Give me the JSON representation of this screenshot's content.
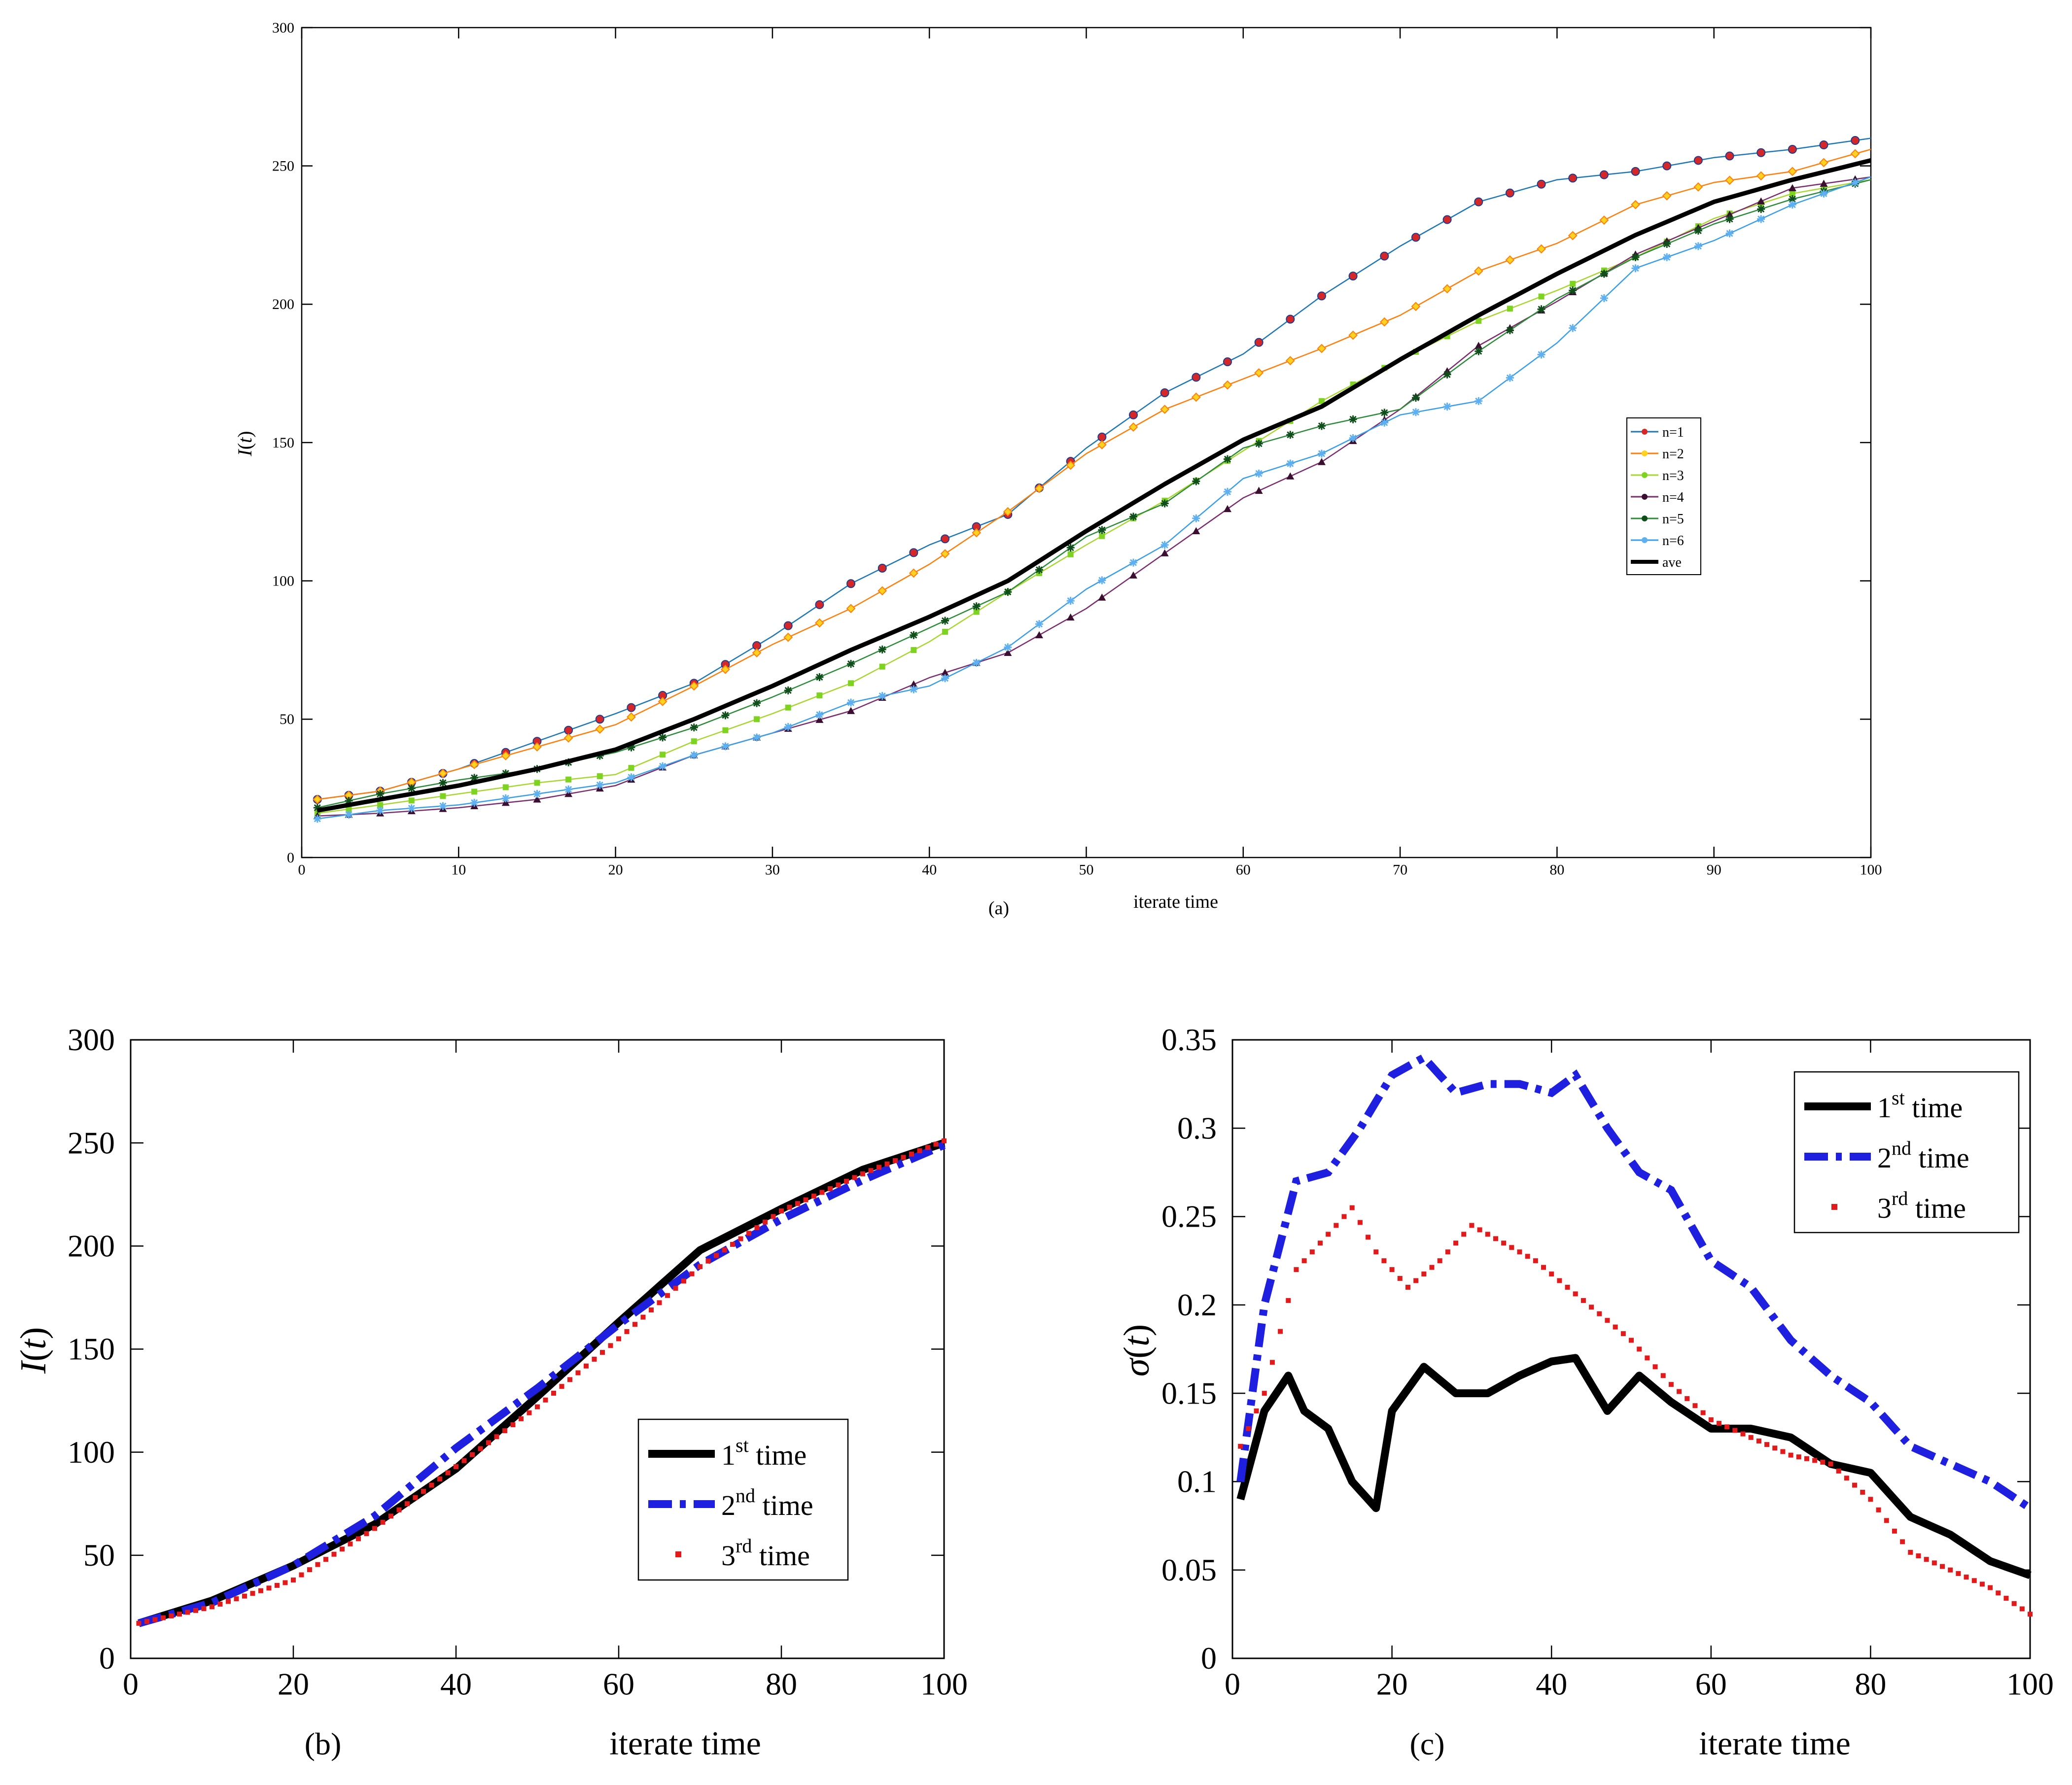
{
  "figure": {
    "panels": {
      "a": "(a)",
      "b": "(b)",
      "c": "(c)"
    }
  },
  "chart_data": [
    {
      "id": "a",
      "type": "line",
      "xlabel": "iterate time",
      "ylabel_main": "I",
      "ylabel_arg": "t",
      "xlim": [
        0,
        100
      ],
      "ylim": [
        0,
        300
      ],
      "xticks": [
        0,
        10,
        20,
        30,
        40,
        50,
        60,
        70,
        80,
        90,
        100
      ],
      "yticks": [
        0,
        50,
        100,
        150,
        200,
        250,
        300
      ],
      "legend_position": "right",
      "series": [
        {
          "name": "n=1",
          "color": "#1f77b4",
          "marker": "circle",
          "markerColor": "#d62728",
          "kx": [
            1,
            5,
            10,
            15,
            20,
            25,
            30,
            35,
            40,
            45,
            50,
            55,
            60,
            65,
            70,
            75,
            80,
            85,
            90,
            95,
            100
          ],
          "ky": [
            21,
            24,
            32,
            42,
            52,
            63,
            80,
            99,
            113,
            124,
            148,
            168,
            182,
            203,
            221,
            237,
            245,
            248,
            253,
            256,
            260
          ]
        },
        {
          "name": "n=2",
          "color": "#ff7f0e",
          "marker": "diamond",
          "markerColor": "#ffd21f",
          "kx": [
            1,
            5,
            10,
            15,
            20,
            25,
            30,
            35,
            40,
            45,
            50,
            55,
            60,
            65,
            70,
            75,
            80,
            85,
            90,
            95,
            100
          ],
          "ky": [
            21,
            24,
            32,
            40,
            48,
            62,
            77,
            90,
            106,
            125,
            146,
            162,
            173,
            184,
            196,
            212,
            222,
            236,
            244,
            248,
            256
          ]
        },
        {
          "name": "n=3",
          "color": "#a8d630",
          "marker": "square",
          "markerColor": "#7ed321",
          "kx": [
            1,
            5,
            10,
            15,
            20,
            25,
            30,
            35,
            40,
            45,
            50,
            55,
            60,
            65,
            70,
            75,
            80,
            85,
            90,
            95,
            100
          ],
          "ky": [
            16,
            19,
            23,
            27,
            30,
            42,
            52,
            63,
            78,
            96,
            113,
            129,
            147,
            165,
            180,
            194,
            205,
            217,
            231,
            240,
            245
          ]
        },
        {
          "name": "n=4",
          "color": "#7b2d6e",
          "marker": "triangle",
          "markerColor": "#3b0f2f",
          "kx": [
            1,
            5,
            10,
            15,
            20,
            25,
            30,
            35,
            40,
            45,
            50,
            55,
            60,
            65,
            70,
            75,
            80,
            85,
            90,
            95,
            100
          ],
          "ky": [
            15,
            16,
            18,
            21,
            26,
            37,
            45,
            53,
            65,
            74,
            90,
            110,
            130,
            143,
            162,
            185,
            201,
            218,
            230,
            242,
            246
          ]
        },
        {
          "name": "n=5",
          "color": "#2e8b3a",
          "marker": "star",
          "markerColor": "#0f4d1a",
          "kx": [
            1,
            5,
            10,
            15,
            20,
            25,
            30,
            35,
            40,
            45,
            50,
            55,
            60,
            65,
            70,
            75,
            80,
            85,
            90,
            95,
            100
          ],
          "ky": [
            18,
            23,
            28,
            32,
            38,
            47,
            58,
            70,
            83,
            96,
            116,
            128,
            148,
            156,
            162,
            183,
            202,
            217,
            229,
            238,
            245
          ]
        },
        {
          "name": "n=6",
          "color": "#3b9ee8",
          "marker": "asterisk",
          "markerColor": "#5fb0f0",
          "kx": [
            1,
            5,
            10,
            15,
            20,
            25,
            30,
            35,
            40,
            45,
            50,
            55,
            60,
            65,
            70,
            75,
            80,
            85,
            90,
            95,
            100
          ],
          "ky": [
            14,
            17,
            19,
            23,
            27,
            37,
            45,
            56,
            62,
            76,
            97,
            113,
            137,
            146,
            160,
            165,
            186,
            213,
            223,
            236,
            246
          ]
        },
        {
          "name": "ave",
          "color": "#000000",
          "marker": "none",
          "markerColor": "#000000",
          "kx": [
            1,
            5,
            10,
            15,
            20,
            25,
            30,
            35,
            40,
            45,
            50,
            55,
            60,
            65,
            70,
            75,
            80,
            85,
            90,
            95,
            100
          ],
          "ky": [
            17,
            21,
            26,
            32,
            39,
            50,
            62,
            75,
            87,
            100,
            118,
            135,
            151,
            163,
            180,
            196,
            211,
            225,
            237,
            245,
            252
          ]
        }
      ]
    },
    {
      "id": "b",
      "type": "line",
      "xlabel": "iterate time",
      "ylabel_main": "I",
      "ylabel_arg": "t",
      "xlim": [
        0,
        100
      ],
      "ylim": [
        0,
        300
      ],
      "xticks": [
        0,
        20,
        40,
        60,
        80,
        100
      ],
      "yticks": [
        0,
        50,
        100,
        150,
        200,
        250,
        300
      ],
      "legend_position": "lower-right",
      "series": [
        {
          "name": "1",
          "sup": "st",
          "suffix": " time",
          "color": "#000000",
          "style": "solid",
          "kx": [
            1,
            10,
            20,
            30,
            40,
            50,
            60,
            70,
            80,
            90,
            100
          ],
          "ky": [
            17,
            28,
            45,
            65,
            92,
            127,
            163,
            198,
            218,
            237,
            250
          ]
        },
        {
          "name": "2",
          "sup": "nd",
          "suffix": " time",
          "color": "#1f1fe0",
          "style": "dashdot",
          "kx": [
            1,
            10,
            20,
            30,
            40,
            50,
            60,
            70,
            80,
            90,
            100
          ],
          "ky": [
            17,
            27,
            45,
            69,
            102,
            131,
            162,
            191,
            213,
            232,
            249
          ]
        },
        {
          "name": "3",
          "sup": "rd",
          "suffix": " time",
          "color": "#e31a1c",
          "style": "dotted",
          "kx": [
            1,
            10,
            20,
            30,
            40,
            50,
            60,
            70,
            80,
            90,
            100
          ],
          "ky": [
            17,
            25,
            38,
            63,
            93,
            122,
            155,
            190,
            217,
            235,
            251
          ]
        }
      ]
    },
    {
      "id": "c",
      "type": "line",
      "xlabel": "iterate time",
      "ylabel_main": "σ",
      "ylabel_arg": "t",
      "xlim": [
        0,
        100
      ],
      "ylim": [
        0,
        0.35
      ],
      "xticks": [
        0,
        20,
        40,
        60,
        80,
        100
      ],
      "yticks": [
        0,
        0.05,
        0.1,
        0.15,
        0.2,
        0.25,
        0.3,
        0.35
      ],
      "legend_position": "top-right",
      "series": [
        {
          "name": "1",
          "sup": "st",
          "suffix": " time",
          "color": "#000000",
          "style": "solid",
          "kx": [
            1,
            4,
            7,
            9,
            12,
            15,
            18,
            20,
            24,
            28,
            32,
            36,
            40,
            43,
            47,
            51,
            55,
            60,
            65,
            70,
            75,
            80,
            85,
            90,
            95,
            100
          ],
          "ky": [
            0.09,
            0.14,
            0.16,
            0.14,
            0.13,
            0.1,
            0.085,
            0.14,
            0.165,
            0.15,
            0.15,
            0.16,
            0.168,
            0.17,
            0.14,
            0.16,
            0.145,
            0.13,
            0.13,
            0.125,
            0.11,
            0.105,
            0.08,
            0.07,
            0.055,
            0.047
          ]
        },
        {
          "name": "2",
          "sup": "nd",
          "suffix": " time",
          "color": "#1f1fe0",
          "style": "dashdot",
          "kx": [
            1,
            4,
            8,
            12,
            16,
            20,
            24,
            28,
            32,
            36,
            40,
            43,
            47,
            51,
            55,
            60,
            65,
            70,
            75,
            80,
            85,
            90,
            95,
            100
          ],
          "ky": [
            0.1,
            0.2,
            0.27,
            0.275,
            0.3,
            0.33,
            0.34,
            0.32,
            0.325,
            0.325,
            0.32,
            0.33,
            0.3,
            0.275,
            0.265,
            0.225,
            0.21,
            0.18,
            0.16,
            0.145,
            0.12,
            0.11,
            0.1,
            0.085
          ]
        },
        {
          "name": "3",
          "sup": "rd",
          "suffix": " time",
          "color": "#e31a1c",
          "style": "dotted",
          "kx": [
            1,
            4,
            8,
            12,
            15,
            18,
            22,
            26,
            30,
            34,
            38,
            42,
            46,
            50,
            55,
            60,
            65,
            70,
            75,
            80,
            85,
            90,
            95,
            100
          ],
          "ky": [
            0.12,
            0.15,
            0.22,
            0.24,
            0.255,
            0.23,
            0.21,
            0.225,
            0.245,
            0.235,
            0.225,
            0.21,
            0.195,
            0.18,
            0.155,
            0.135,
            0.125,
            0.115,
            0.11,
            0.09,
            0.06,
            0.05,
            0.04,
            0.025
          ]
        }
      ]
    }
  ]
}
